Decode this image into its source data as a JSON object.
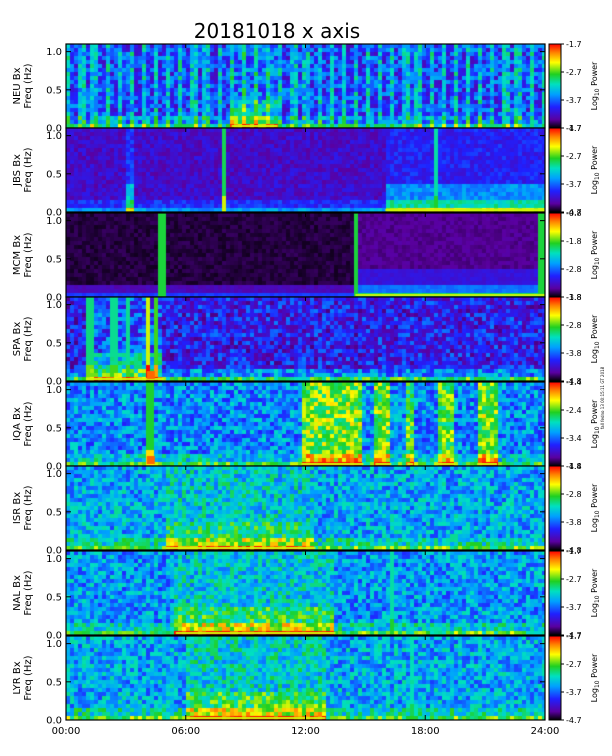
{
  "chart_data": {
    "type": "heatmap",
    "title": "20181018  x axis",
    "x_ticks": [
      "00:00",
      "06:00",
      "12:00",
      "18:00",
      "24:00"
    ],
    "x_range_hours": [
      0,
      24
    ],
    "y_ticks": [
      "0.0",
      "0.5",
      "1.0"
    ],
    "y_range": [
      0,
      1.1
    ],
    "colorbar_label": "Log",
    "colorbar_label_sub": "10",
    "colorbar_label_tail": " Power",
    "side_note": "fall fedno 13 00:15:11 GT 2018",
    "panels": [
      {
        "station": "NEU",
        "ylabel_top": "NEU Bx",
        "ylabel_bottom": "Freq (Hz)",
        "cb_ticks": [
          "-1.7",
          "-2.7",
          "-3.7",
          "-4.7"
        ],
        "vmin": -4.7,
        "vmax": -1.7,
        "style": "vstripes",
        "base": 0.32,
        "events": [
          [
            8.3,
            10.6,
            0.18
          ]
        ],
        "lines": []
      },
      {
        "station": "JBS",
        "ylabel_top": "JBS Bx",
        "ylabel_bottom": "Freq (Hz)",
        "cb_ticks": [
          "-1.7",
          "-2.7",
          "-3.7",
          "-4.7"
        ],
        "vmin": -4.7,
        "vmax": -1.7,
        "style": "dark",
        "base": 0.12,
        "events": [
          [
            16.0,
            24.0,
            0.22
          ],
          [
            3.0,
            3.4,
            0.3
          ]
        ],
        "lines": [
          [
            7.9,
            0.5
          ],
          [
            18.5,
            0.3
          ]
        ]
      },
      {
        "station": "MCM",
        "ylabel_top": "MCM Bx",
        "ylabel_bottom": "Freq (Hz)",
        "cb_ticks": [
          "-0.8",
          "-1.8",
          "-2.8",
          "-3.8"
        ],
        "vmin": -3.8,
        "vmax": -0.8,
        "style": "black",
        "base": 0.0,
        "events": [
          [
            14.5,
            24.0,
            0.15
          ]
        ],
        "lines": [
          [
            4.8,
            0.6
          ],
          [
            14.5,
            0.6
          ],
          [
            23.85,
            0.6
          ]
        ]
      },
      {
        "station": "SPA",
        "ylabel_top": "SPA Bx",
        "ylabel_bottom": "Freq (Hz)",
        "cb_ticks": [
          "-1.8",
          "-2.8",
          "-3.8",
          "-4.8"
        ],
        "vmin": -4.8,
        "vmax": -1.8,
        "style": "spa",
        "base": 0.22,
        "events": [
          [
            1.0,
            4.9,
            0.25
          ]
        ],
        "lines": [
          [
            4.1,
            1.0
          ],
          [
            4.5,
            0.7
          ],
          [
            1.2,
            0.4
          ],
          [
            2.4,
            0.35
          ],
          [
            3.1,
            0.35
          ]
        ]
      },
      {
        "station": "IQA",
        "ylabel_top": "IQA Bx",
        "ylabel_bottom": "Freq (Hz)",
        "cb_ticks": [
          "-1.4",
          "-2.4",
          "-3.4",
          "-4.4"
        ],
        "vmin": -4.4,
        "vmax": -1.4,
        "style": "iqa",
        "base": 0.38,
        "events": [
          [
            11.8,
            14.9,
            0.3
          ],
          [
            15.5,
            16.3,
            0.3
          ],
          [
            17.1,
            17.4,
            0.25
          ],
          [
            18.6,
            19.5,
            0.28
          ],
          [
            20.6,
            21.6,
            0.3
          ]
        ],
        "lines": [
          [
            4.2,
            0.6
          ]
        ]
      },
      {
        "station": "ISR",
        "ylabel_top": "ISR Bx",
        "ylabel_bottom": "Freq (Hz)",
        "cb_ticks": [
          "-1.8",
          "-2.8",
          "-3.8",
          "-4.8"
        ],
        "vmin": -4.8,
        "vmax": -1.8,
        "style": "noise",
        "base": 0.42,
        "events": [
          [
            5.0,
            12.5,
            0.15
          ]
        ],
        "lines": []
      },
      {
        "station": "NAL",
        "ylabel_top": "NAL Bx",
        "ylabel_bottom": "Freq (Hz)",
        "cb_ticks": [
          "-1.7",
          "-2.7",
          "-3.7",
          "-4.7"
        ],
        "vmin": -4.7,
        "vmax": -1.7,
        "style": "noise",
        "base": 0.4,
        "events": [
          [
            5.5,
            13.5,
            0.2
          ]
        ],
        "lines": [
          [
            16.3,
            0.3
          ]
        ]
      },
      {
        "station": "LYR",
        "ylabel_top": "LYR Bx",
        "ylabel_bottom": "Freq (Hz)",
        "cb_ticks": [
          "-1.7",
          "-2.7",
          "-3.7",
          "-4.7"
        ],
        "vmin": -4.7,
        "vmax": -1.7,
        "style": "noise",
        "base": 0.42,
        "events": [
          [
            6.0,
            13.0,
            0.2
          ]
        ],
        "lines": [
          [
            17.3,
            0.25
          ]
        ]
      }
    ]
  }
}
